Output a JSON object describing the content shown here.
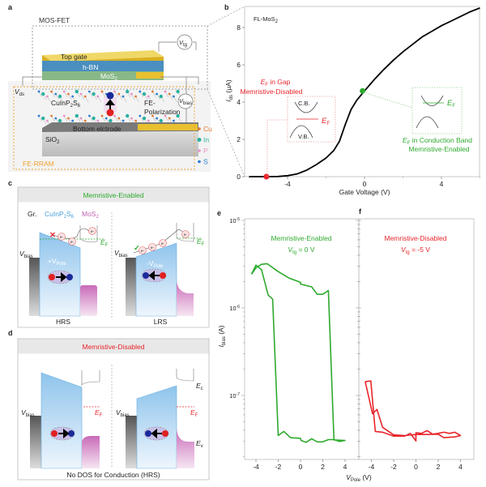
{
  "panels": {
    "a": "a",
    "b": "b",
    "c": "c",
    "d": "d",
    "e": "e",
    "f": "f"
  },
  "colors": {
    "enabled": "#2eaa2e",
    "disabled": "#e8252b",
    "cips": "#4a9fd8",
    "mos2": "#c060b0",
    "rram": "#f0a030",
    "gate": "#e8c030"
  },
  "panel_a": {
    "mosfet_label": "MOS-FET",
    "top_gate": "Top gate",
    "hbn": "h-BN",
    "mos2": "MoS",
    "mos2_sub": "2",
    "vtg": "V",
    "vtg_sub": "tg",
    "vds": "V",
    "vds_sub": "ds",
    "vbias": "V",
    "vbias_sub": "bias",
    "cips": "CuInP",
    "cips_sub1": "2",
    "cips_mid": "S",
    "cips_sub2": "6",
    "fe_pol_1": "FE-",
    "fe_pol_2": "Polarization",
    "bottom_electrode": "Bottom elctrode",
    "sio2": "SiO",
    "sio2_sub": "2",
    "rram_label": "FE-RRAM",
    "legend": [
      {
        "label": "Cu",
        "color": "#e07a30"
      },
      {
        "label": "In",
        "color": "#2ab0a0"
      },
      {
        "label": "P",
        "color": "#e890c8"
      },
      {
        "label": "S",
        "color": "#2a7ad0"
      }
    ]
  },
  "panel_b": {
    "inset_label": "FL-MoS",
    "inset_sub": "2",
    "gap_title_ef": "E",
    "gap_title_sub": "F",
    "gap_title_rest": " in Gap",
    "gap_subtitle": "Memristive-Disabled",
    "cb": "C.B.",
    "vb": "V.B.",
    "ef": "E",
    "ef_sub": "F",
    "cond_title_rest": " in Conduction Band",
    "cond_subtitle": "Memristive-Enabled"
  },
  "panel_c": {
    "header": "Memristive-Enabled",
    "gr": "Gr.",
    "cips": "CuInP",
    "cips_sub1": "2",
    "cips_mid": "S",
    "cips_sub2": "6",
    "mos2": "MoS",
    "mos2_sub": "2",
    "vbias": "V",
    "vbias_sub": "bias",
    "plus_vpole": "+V",
    "minus_vpole": "-V",
    "pole_sub": "Pole",
    "ef": "E",
    "ef_sub": "F",
    "electron": "e-",
    "hrs": "HRS",
    "lrs": "LRS"
  },
  "panel_d": {
    "header": "Memristive-Disabled",
    "vbias": "V",
    "vbias_sub": "bias",
    "ef": "E",
    "ef_sub": "F",
    "ec": "E",
    "ec_sub": "c",
    "ev": "E",
    "ev_sub": "v",
    "footer": "No DOS for Conduction (HRS)"
  },
  "chart_data": [
    {
      "id": "b",
      "type": "line",
      "xlabel": "Gate Voltage (V)",
      "ylabel": "I",
      "ylabel_sub": "ds",
      "ylabel_unit": " (μA)",
      "xlim": [
        -6,
        6
      ],
      "ylim": [
        0,
        9.2
      ],
      "xticks": [
        -4,
        0,
        4
      ],
      "yticks": [
        0,
        2,
        4,
        6,
        8
      ],
      "grid": false,
      "series": [
        {
          "color": "#000000",
          "x": [
            -6,
            -5,
            -4.5,
            -4,
            -3.5,
            -3,
            -2.5,
            -2,
            -1.6,
            -1.3,
            -1,
            -0.7,
            -0.4,
            0,
            0.5,
            1,
            1.5,
            2,
            2.5,
            3,
            3.5,
            4,
            4.5,
            5,
            5.5,
            6
          ],
          "y": [
            0,
            0,
            0.01,
            0.05,
            0.15,
            0.35,
            0.65,
            1.0,
            1.4,
            1.9,
            2.8,
            3.6,
            4.1,
            4.6,
            5.2,
            5.75,
            6.25,
            6.7,
            7.1,
            7.5,
            7.8,
            8.1,
            8.35,
            8.6,
            8.85,
            9.05
          ]
        }
      ],
      "markers": [
        {
          "x": -5.1,
          "y": 0,
          "color": "#e8252b"
        },
        {
          "x": -0.1,
          "y": 4.6,
          "color": "#2eaa2e"
        }
      ]
    },
    {
      "id": "e",
      "type": "line",
      "title": "Memristive-Enabled",
      "subtitle_v": "V",
      "subtitle_sub": "tg",
      "subtitle_rest": " = 0 V",
      "ylabel": "I",
      "ylabel_sub": "bias",
      "ylabel_unit": " (A)",
      "yscale": "log",
      "ylim": [
        1.9e-08,
        1e-05
      ],
      "xlim": [
        -5,
        5
      ],
      "xticks": [
        -4,
        -2,
        0,
        2,
        4
      ],
      "yticks": [
        {
          "base": "10",
          "exp": "-5",
          "value": 1e-05
        },
        {
          "base": "10",
          "exp": "-6",
          "value": 1e-06
        },
        {
          "base": "10",
          "exp": "-7",
          "value": 1e-07
        }
      ],
      "series": [
        {
          "color": "#2eaa2e",
          "x": [
            -4.4,
            -4,
            -3.5,
            -2.9,
            -2.5,
            -2.0,
            -1.5,
            -0.9,
            0,
            0.05,
            0.5,
            1,
            1.5,
            2,
            2.5,
            3,
            3.5,
            4,
            3,
            2.5,
            2,
            1.5,
            1,
            0,
            0,
            -1,
            -2,
            -3,
            -3.5,
            -4,
            -4.4
          ],
          "y": [
            2.43e-06,
            3.08e-06,
            2.73e-06,
            1.4e-06,
            1.26e-06,
            3.48e-08,
            3.88e-08,
            3.29e-08,
            3.24e-08,
            3.06e-08,
            2.91e-08,
            3.2e-08,
            2.95e-08,
            2.95e-08,
            3.13e-08,
            3.13e-08,
            2.98e-08,
            3.06e-08,
            3.1e-08,
            1.58e-06,
            1.43e-06,
            1.43e-06,
            1.74e-06,
            1.87e-06,
            1.96e-06,
            2.18e-06,
            2.6e-06,
            3.2e-06,
            3.15e-06,
            2.87e-06,
            2.43e-06
          ]
        }
      ]
    },
    {
      "id": "f",
      "type": "line",
      "title": "Memristive-Disabled",
      "subtitle_v": "V",
      "subtitle_sub": "tg",
      "subtitle_rest": " = -5 V",
      "yscale": "log",
      "ylim": [
        1.9e-08,
        1e-05
      ],
      "xlim": [
        -5,
        5
      ],
      "xticks": [
        -4,
        -2,
        0,
        2,
        4
      ],
      "shared_xlabel": "V",
      "shared_xlabel_sub": "Pole",
      "shared_xlabel_unit": " (V)",
      "series": [
        {
          "color": "#e8252b",
          "x": [
            -4.55,
            -4.05,
            -3.65,
            -3,
            -2,
            -1,
            -0.5,
            0,
            0,
            0.5,
            1,
            1.5,
            2,
            2.5,
            3,
            3.5,
            4,
            3.5,
            2.5,
            2,
            1,
            0,
            -1,
            -2,
            -3,
            -3.5,
            -3.9,
            -4.55
          ],
          "y": [
            1.44e-07,
            1.46e-07,
            3.88e-08,
            3.8e-08,
            3.43e-08,
            3.43e-08,
            3.69e-08,
            3.02e-08,
            3.74e-08,
            3.69e-08,
            3.96e-08,
            3.61e-08,
            3.69e-08,
            3.8e-08,
            3.69e-08,
            3.8e-08,
            3.48e-08,
            3.36e-08,
            3.29e-08,
            3.61e-08,
            3.58e-08,
            3.58e-08,
            3.48e-08,
            3.54e-08,
            4.33e-08,
            6.92e-08,
            6.19e-08,
            1.44e-07
          ]
        }
      ]
    }
  ]
}
